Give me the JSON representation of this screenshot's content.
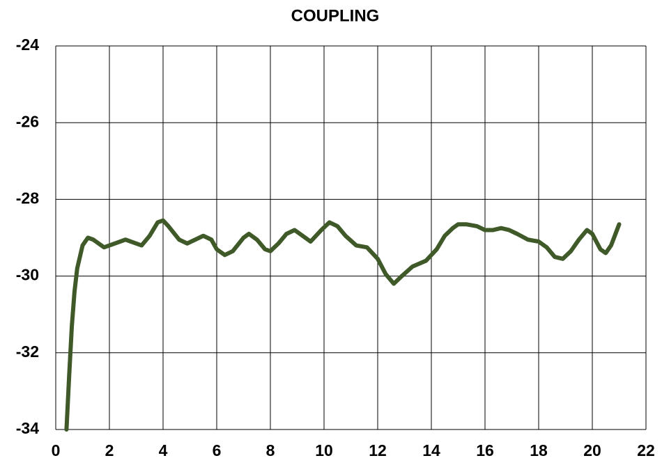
{
  "chart_data": {
    "type": "line",
    "title": "COUPLING",
    "x": [
      0.4,
      0.5,
      0.6,
      0.7,
      0.8,
      1.0,
      1.2,
      1.4,
      1.8,
      2.0,
      2.6,
      3.0,
      3.2,
      3.5,
      3.8,
      4.0,
      4.2,
      4.6,
      4.9,
      5.2,
      5.5,
      5.8,
      6.0,
      6.3,
      6.6,
      7.0,
      7.2,
      7.5,
      7.8,
      8.0,
      8.3,
      8.6,
      8.9,
      9.2,
      9.5,
      9.9,
      10.2,
      10.5,
      10.8,
      11.2,
      11.6,
      12.0,
      12.3,
      12.6,
      12.9,
      13.3,
      13.8,
      14.2,
      14.5,
      14.8,
      15.0,
      15.3,
      15.7,
      16.0,
      16.3,
      16.6,
      16.9,
      17.2,
      17.6,
      18.0,
      18.3,
      18.6,
      18.9,
      19.2,
      19.5,
      19.8,
      20.0,
      20.3,
      20.5,
      20.7,
      21.0
    ],
    "series": [
      {
        "name": "Coupling",
        "color": "#3f5a28",
        "values": [
          -34,
          -32.6,
          -31.3,
          -30.4,
          -29.8,
          -29.2,
          -29.0,
          -29.05,
          -29.25,
          -29.2,
          -29.05,
          -29.15,
          -29.2,
          -28.95,
          -28.6,
          -28.55,
          -28.7,
          -29.05,
          -29.15,
          -29.05,
          -28.95,
          -29.05,
          -29.3,
          -29.45,
          -29.35,
          -29.0,
          -28.9,
          -29.05,
          -29.3,
          -29.35,
          -29.15,
          -28.9,
          -28.8,
          -28.95,
          -29.1,
          -28.8,
          -28.6,
          -28.7,
          -28.95,
          -29.2,
          -29.25,
          -29.55,
          -29.95,
          -30.2,
          -30.0,
          -29.75,
          -29.6,
          -29.3,
          -28.95,
          -28.75,
          -28.65,
          -28.65,
          -28.7,
          -28.8,
          -28.8,
          -28.75,
          -28.8,
          -28.9,
          -29.05,
          -29.1,
          -29.25,
          -29.5,
          -29.55,
          -29.35,
          -29.05,
          -28.8,
          -28.9,
          -29.3,
          -29.4,
          -29.2,
          -28.65
        ]
      }
    ],
    "xlim": [
      0,
      22
    ],
    "xticks": [
      0,
      2,
      4,
      6,
      8,
      10,
      12,
      14,
      16,
      18,
      20,
      22
    ],
    "ylim": [
      -34,
      -24
    ],
    "yticks": [
      -34,
      -32,
      -30,
      -28,
      -26,
      -24
    ],
    "grid": true
  }
}
